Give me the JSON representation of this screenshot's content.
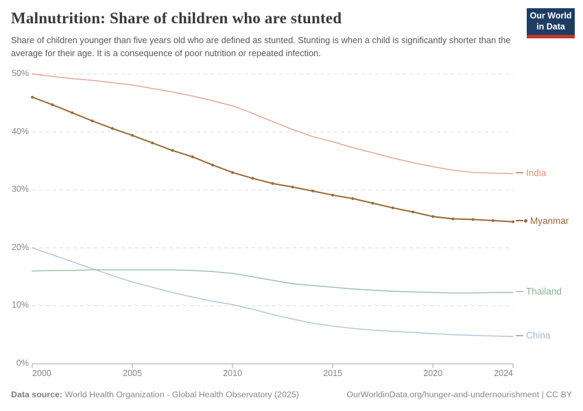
{
  "header": {
    "title": "Malnutrition: Share of children who are stunted",
    "subtitle": "Share of children younger than five years old who are defined as stunted. Stunting is when a child is significantly shorter than the average for their age. It is a consequence of poor nutrition or repeated infection."
  },
  "logo": {
    "line1": "Our World",
    "line2": "in Data",
    "bg_color": "#1d3d63",
    "accent_color": "#c0392b"
  },
  "footer": {
    "source_label": "Data source:",
    "source_text": " World Health Organization - Global Health Observatory (2025)",
    "link_text": "OurWorldinData.org/hunger-and-undernourishment | CC BY"
  },
  "chart_data": {
    "type": "line",
    "title": "Malnutrition: Share of children who are stunted",
    "x": [
      2000,
      2001,
      2002,
      2003,
      2004,
      2005,
      2006,
      2007,
      2008,
      2009,
      2010,
      2011,
      2012,
      2013,
      2014,
      2015,
      2016,
      2017,
      2018,
      2019,
      2020,
      2021,
      2022,
      2023,
      2024
    ],
    "xlim": [
      2000,
      2024
    ],
    "ylim": [
      0,
      50
    ],
    "y_ticks": [
      0,
      10,
      20,
      30,
      40,
      50
    ],
    "y_tick_suffix": "%",
    "x_ticks": [
      2000,
      2005,
      2010,
      2015,
      2020,
      2024
    ],
    "grid": "horizontal-dashed",
    "legend": "line-end-labels",
    "series": [
      {
        "name": "India",
        "color": "#dd9179",
        "has_markers": false,
        "values": [
          50.0,
          49.6,
          49.2,
          48.9,
          48.5,
          48.1,
          47.5,
          46.9,
          46.2,
          45.4,
          44.5,
          43.2,
          41.8,
          40.4,
          39.2,
          38.3,
          37.3,
          36.4,
          35.5,
          34.7,
          34.0,
          33.4,
          33.0,
          32.9,
          32.8
        ]
      },
      {
        "name": "Myanmar",
        "color": "#9a6a34",
        "has_markers": true,
        "values": [
          46.0,
          44.7,
          43.3,
          41.9,
          40.6,
          39.4,
          38.1,
          36.8,
          35.7,
          34.3,
          33.0,
          32.0,
          31.1,
          30.5,
          29.8,
          29.1,
          28.5,
          27.7,
          26.9,
          26.2,
          25.4,
          25.0,
          24.9,
          24.7,
          24.5
        ]
      },
      {
        "name": "Thailand",
        "color": "#83b493",
        "has_markers": false,
        "values": [
          16.0,
          16.1,
          16.1,
          16.2,
          16.2,
          16.2,
          16.2,
          16.2,
          16.1,
          15.9,
          15.6,
          15.0,
          14.4,
          13.8,
          13.5,
          13.2,
          12.9,
          12.7,
          12.5,
          12.4,
          12.3,
          12.2,
          12.2,
          12.3,
          12.3
        ]
      },
      {
        "name": "China",
        "color": "#a2b7d3",
        "has_markers": false,
        "values": [
          20.0,
          18.8,
          17.6,
          16.4,
          15.2,
          14.1,
          13.2,
          12.3,
          11.5,
          10.8,
          10.2,
          9.4,
          8.5,
          7.7,
          7.0,
          6.5,
          6.1,
          5.8,
          5.6,
          5.4,
          5.2,
          5.0,
          4.9,
          4.8,
          4.7
        ]
      }
    ]
  }
}
